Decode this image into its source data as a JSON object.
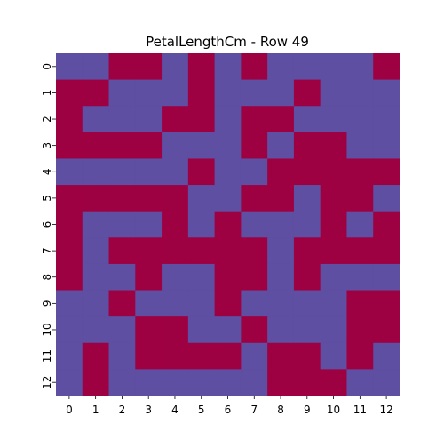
{
  "chart_data": {
    "type": "heatmap",
    "title": "PetalLengthCm - Row 49",
    "xlabel": "",
    "ylabel": "",
    "x_ticks": [
      "0",
      "1",
      "2",
      "3",
      "4",
      "5",
      "6",
      "7",
      "8",
      "9",
      "10",
      "11",
      "12"
    ],
    "y_ticks": [
      "0",
      "1",
      "2",
      "3",
      "4",
      "5",
      "6",
      "7",
      "8",
      "9",
      "10",
      "11",
      "12"
    ],
    "colors": {
      "0": "#5e4fa2",
      "1": "#9e0142"
    },
    "grid": false,
    "legend": "none",
    "values": [
      [
        0,
        0,
        1,
        1,
        0,
        1,
        0,
        1,
        0,
        0,
        0,
        0,
        1
      ],
      [
        1,
        1,
        0,
        0,
        0,
        1,
        0,
        0,
        0,
        1,
        0,
        0,
        0
      ],
      [
        1,
        0,
        0,
        0,
        1,
        1,
        0,
        1,
        1,
        0,
        0,
        0,
        0
      ],
      [
        1,
        1,
        1,
        1,
        0,
        0,
        0,
        1,
        0,
        1,
        1,
        0,
        0
      ],
      [
        0,
        0,
        0,
        0,
        0,
        1,
        0,
        0,
        1,
        1,
        1,
        1,
        1
      ],
      [
        1,
        1,
        1,
        1,
        1,
        0,
        0,
        1,
        1,
        0,
        1,
        1,
        0
      ],
      [
        1,
        0,
        0,
        0,
        1,
        0,
        1,
        0,
        0,
        0,
        1,
        0,
        1
      ],
      [
        1,
        0,
        1,
        1,
        1,
        1,
        1,
        1,
        0,
        1,
        1,
        1,
        1
      ],
      [
        1,
        0,
        0,
        1,
        0,
        0,
        1,
        1,
        0,
        1,
        0,
        0,
        0
      ],
      [
        0,
        0,
        1,
        0,
        0,
        0,
        1,
        0,
        0,
        0,
        0,
        1,
        1
      ],
      [
        0,
        0,
        0,
        1,
        1,
        0,
        0,
        1,
        0,
        0,
        0,
        1,
        1
      ],
      [
        0,
        1,
        0,
        1,
        1,
        1,
        1,
        0,
        1,
        1,
        0,
        1,
        0
      ],
      [
        0,
        1,
        0,
        0,
        0,
        0,
        0,
        0,
        1,
        1,
        1,
        0,
        0
      ]
    ]
  }
}
